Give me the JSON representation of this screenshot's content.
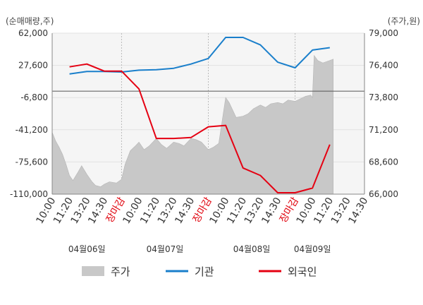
{
  "chart_data": {
    "type": "line",
    "left_axis": {
      "unit": "(순매매량,주)",
      "ticks": [
        "62,000",
        "27,600",
        "-6,800",
        "-41,200",
        "-75,600",
        "-110,000"
      ],
      "range": [
        -110000,
        62000
      ]
    },
    "right_axis": {
      "unit": "(주가,원)",
      "ticks": [
        "79,000",
        "76,400",
        "73,800",
        "71,200",
        "68,600",
        "66,000"
      ],
      "range": [
        66000,
        79000
      ]
    },
    "x_tick_labels": [
      "10:00",
      "11:20",
      "13:20",
      "14:30",
      "장마감",
      "10:00",
      "11:20",
      "13:20",
      "14:30",
      "장마감",
      "10:00",
      "11:20",
      "13:20",
      "14:30",
      "장마감",
      "10:00",
      "11:20",
      "13:20",
      "14:30"
    ],
    "close_marker_label": "장마감",
    "dates": [
      "04월06일",
      "04월07일",
      "04월08일",
      "04월09일"
    ],
    "series": [
      {
        "name": "기관",
        "axis": "left",
        "color": "#1a7fcb",
        "points": [
          [
            1,
            18500
          ],
          [
            2,
            21000
          ],
          [
            3,
            21000
          ],
          [
            4,
            20500
          ],
          [
            5,
            22500
          ],
          [
            6,
            23000
          ],
          [
            7,
            24500
          ],
          [
            8,
            29000
          ],
          [
            9,
            35000
          ],
          [
            10,
            57500
          ],
          [
            11,
            57500
          ],
          [
            12,
            49500
          ],
          [
            13,
            31000
          ],
          [
            14,
            25000
          ],
          [
            15,
            44000
          ],
          [
            16,
            46500
          ]
        ]
      },
      {
        "name": "외국인",
        "axis": "left",
        "color": "#e50012",
        "points": [
          [
            1,
            26000
          ],
          [
            2,
            29000
          ],
          [
            3,
            21500
          ],
          [
            4,
            21500
          ],
          [
            5,
            2500
          ],
          [
            6,
            -50500
          ],
          [
            7,
            -50500
          ],
          [
            8,
            -49500
          ],
          [
            9,
            -38000
          ],
          [
            10,
            -36500
          ],
          [
            11,
            -82000
          ],
          [
            12,
            -90000
          ],
          [
            13,
            -108500
          ],
          [
            14,
            -108500
          ],
          [
            15,
            -103500
          ],
          [
            16,
            -57000
          ]
        ]
      },
      {
        "name": "주가",
        "axis": "right",
        "color": "#c8c8c8",
        "type": "area",
        "points": [
          [
            0,
            71000
          ],
          [
            0.2,
            70300
          ],
          [
            0.4,
            69800
          ],
          [
            0.6,
            69200
          ],
          [
            0.8,
            68400
          ],
          [
            1,
            67500
          ],
          [
            1.2,
            67100
          ],
          [
            1.5,
            67800
          ],
          [
            1.7,
            68300
          ],
          [
            2,
            67600
          ],
          [
            2.3,
            67000
          ],
          [
            2.5,
            66700
          ],
          [
            2.8,
            66600
          ],
          [
            3,
            66800
          ],
          [
            3.3,
            67000
          ],
          [
            3.7,
            66900
          ],
          [
            4,
            67200
          ],
          [
            4.2,
            68400
          ],
          [
            4.5,
            69500
          ],
          [
            4.8,
            69900
          ],
          [
            5,
            70200
          ],
          [
            5.3,
            69600
          ],
          [
            5.6,
            69900
          ],
          [
            6,
            70500
          ],
          [
            6.3,
            70000
          ],
          [
            6.6,
            69700
          ],
          [
            7,
            70200
          ],
          [
            7.3,
            70100
          ],
          [
            7.6,
            69900
          ],
          [
            8,
            70500
          ],
          [
            8.3,
            70400
          ],
          [
            8.6,
            70200
          ],
          [
            8.8,
            69900
          ],
          [
            9,
            69600
          ],
          [
            9.3,
            69800
          ],
          [
            9.6,
            70100
          ],
          [
            10,
            73800
          ],
          [
            10.2,
            73400
          ],
          [
            10.4,
            72800
          ],
          [
            10.6,
            72200
          ],
          [
            11,
            72300
          ],
          [
            11.3,
            72500
          ],
          [
            11.6,
            72900
          ],
          [
            12,
            73200
          ],
          [
            12.3,
            73000
          ],
          [
            12.6,
            73300
          ],
          [
            13,
            73400
          ],
          [
            13.3,
            73300
          ],
          [
            13.6,
            73600
          ],
          [
            14,
            73500
          ],
          [
            14.3,
            73700
          ],
          [
            14.6,
            73900
          ],
          [
            14.9,
            74000
          ],
          [
            15,
            73800
          ],
          [
            15.1,
            77200
          ],
          [
            15.3,
            76800
          ],
          [
            15.6,
            76600
          ],
          [
            16,
            76800
          ],
          [
            16.2,
            76900
          ]
        ]
      }
    ],
    "grid": true,
    "legend_position": "bottom",
    "legend": [
      {
        "label": "주가",
        "color": "#c8c8c8",
        "shape": "box"
      },
      {
        "label": "기관",
        "color": "#1a7fcb",
        "shape": "line"
      },
      {
        "label": "외국인",
        "color": "#e50012",
        "shape": "line"
      }
    ]
  }
}
